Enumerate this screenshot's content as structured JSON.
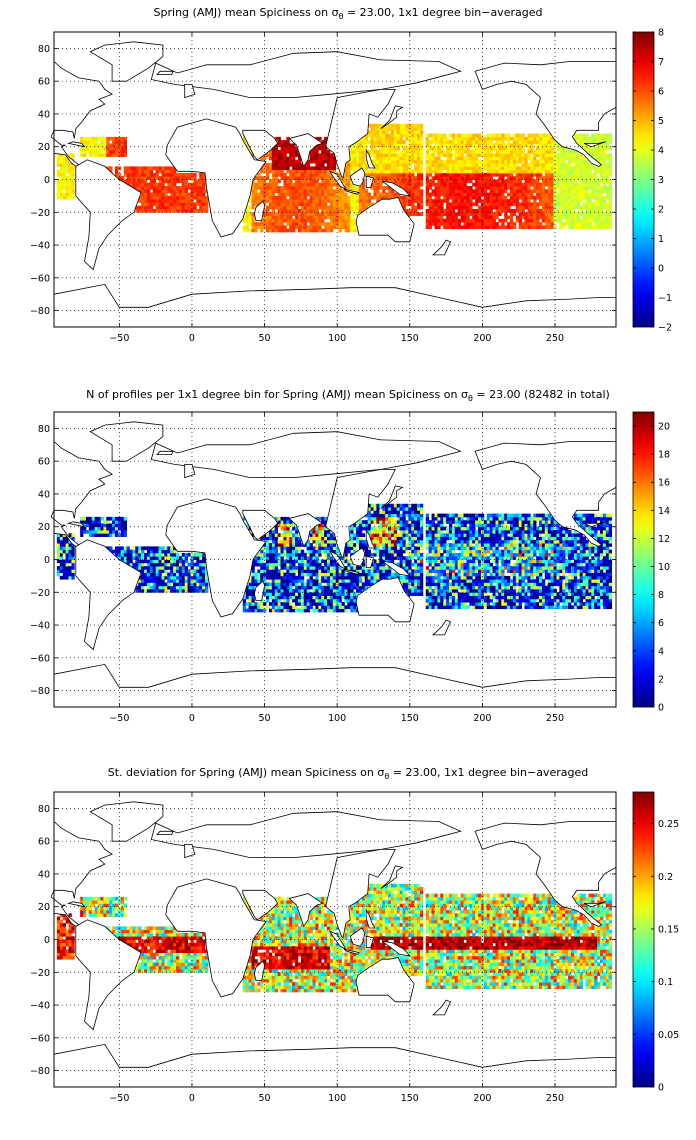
{
  "panels": [
    {
      "title_parts": [
        "Spring (AMJ) mean Spiciness on ",
        "σ",
        "θ",
        " = 23.00, 1x1 degree bin−averaged"
      ],
      "colorbar_ticks": [
        "−2",
        "−1",
        "0",
        "1",
        "2",
        "3",
        "4",
        "5",
        "6",
        "7",
        "8"
      ],
      "colorbar_range": [
        -2,
        8
      ]
    },
    {
      "title_parts": [
        "N of profiles per 1x1 degree bin for Spring (AMJ) mean Spiciness on ",
        "σ",
        "θ",
        " = 23.00 (82482 in total)"
      ],
      "colorbar_ticks": [
        "0",
        "2",
        "4",
        "6",
        "8",
        "10",
        "12",
        "14",
        "16",
        "18",
        "20"
      ],
      "colorbar_range": [
        0,
        21
      ]
    },
    {
      "title_parts": [
        "St. deviation for Spring (AMJ) mean Spiciness on ",
        "σ",
        "θ",
        " = 23.00, 1x1 degree bin−averaged"
      ],
      "colorbar_ticks": [
        "0",
        "0.05",
        "0.1",
        "0.15",
        "0.2",
        "0.25"
      ],
      "colorbar_range": [
        0,
        0.28
      ]
    }
  ],
  "x_ticks": [
    "−50",
    "0",
    "50",
    "100",
    "150",
    "200",
    "250"
  ],
  "y_ticks": [
    "80",
    "60",
    "40",
    "20",
    "0",
    "−20",
    "−40",
    "−60",
    "−80"
  ],
  "x_range": [
    -95,
    292
  ],
  "y_range": [
    -90,
    90
  ],
  "colormap": "jet",
  "grid": "dotted"
}
